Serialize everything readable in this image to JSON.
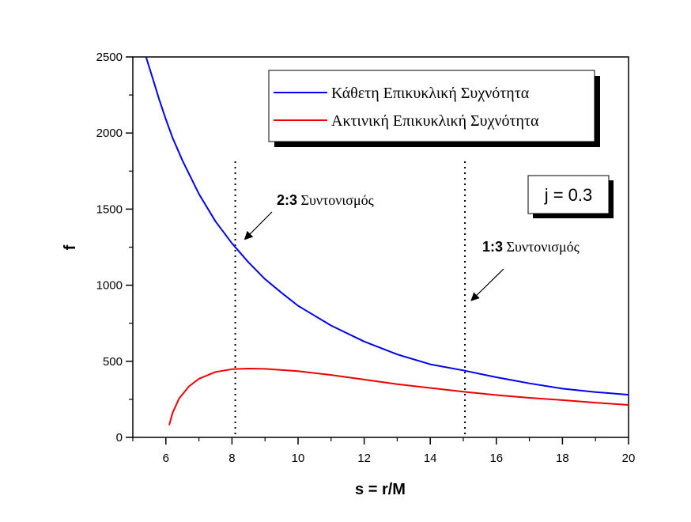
{
  "chart_data": {
    "type": "line",
    "title": "",
    "xlabel": "s = r/M",
    "ylabel": "f",
    "xlim": [
      5,
      20
    ],
    "ylim": [
      0,
      2500
    ],
    "xticks": [
      6,
      8,
      10,
      12,
      14,
      16,
      18,
      20
    ],
    "yticks": [
      0,
      500,
      1000,
      1500,
      2000,
      2500
    ],
    "grid": false,
    "legend_position": "top-right",
    "series": [
      {
        "name": "Κάθετη Επικυκλική Συχνότητα",
        "color": "#0000ee",
        "x": [
          5.4,
          5.6,
          5.8,
          6.0,
          6.2,
          6.5,
          7.0,
          7.5,
          8.0,
          8.5,
          9.0,
          9.5,
          10.0,
          11.0,
          12.0,
          13.0,
          14.0,
          15.0,
          16.0,
          17.0,
          18.0,
          19.0,
          20.0
        ],
        "y": [
          2500,
          2360,
          2220,
          2090,
          1970,
          1820,
          1600,
          1420,
          1275,
          1150,
          1040,
          950,
          865,
          735,
          630,
          545,
          480,
          440,
          395,
          355,
          320,
          298,
          280
        ]
      },
      {
        "name": "Ακτινική Επικυκλική Συχνότητα",
        "color": "#ee0000",
        "x": [
          6.1,
          6.2,
          6.4,
          6.7,
          7.0,
          7.5,
          8.0,
          8.5,
          9.0,
          10.0,
          11.0,
          12.0,
          13.0,
          14.0,
          15.0,
          16.0,
          17.0,
          18.0,
          19.0,
          20.0
        ],
        "y": [
          80,
          160,
          255,
          335,
          385,
          430,
          448,
          452,
          450,
          435,
          410,
          380,
          350,
          325,
          300,
          278,
          260,
          245,
          228,
          213
        ]
      }
    ],
    "vlines": [
      8.1,
      15.05
    ],
    "annotations": [
      {
        "bold": "2:3",
        "text": " Συντονισμός",
        "target": [
          8.1,
          1260
        ]
      },
      {
        "bold": "1:3",
        "text": " Συντονισμός",
        "target": [
          15.05,
          895
        ]
      }
    ],
    "parameter_label": "j = 0.3"
  }
}
